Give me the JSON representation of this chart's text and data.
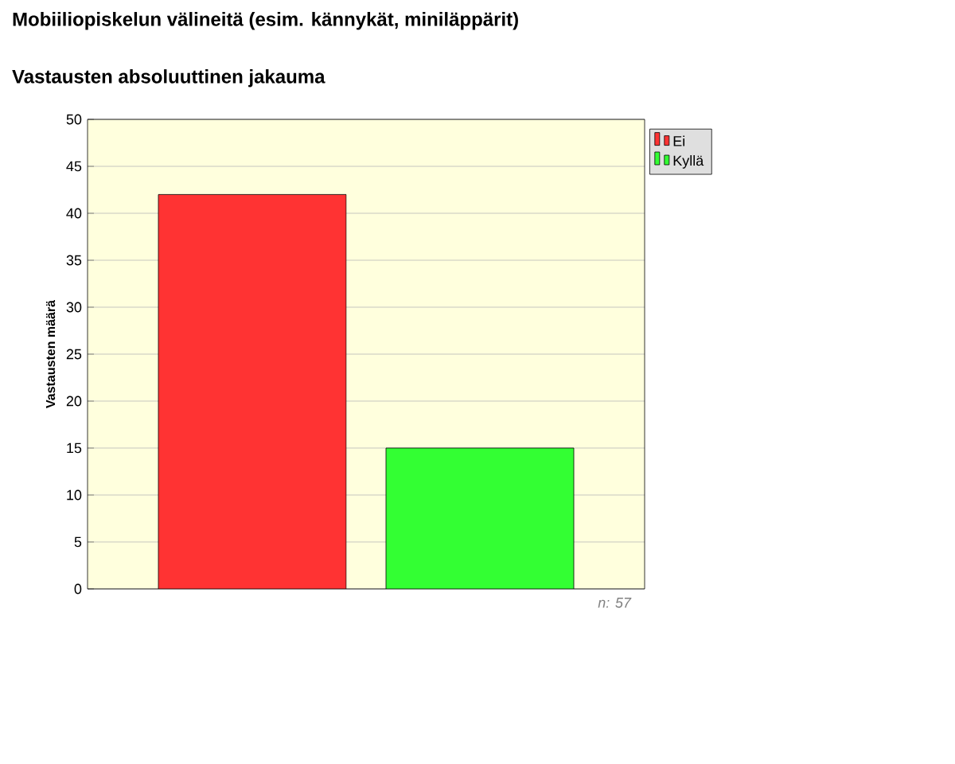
{
  "chart_data": {
    "type": "bar",
    "title": "Mobiiliopiskelun välineitä   (esim. kännykät, miniläppärit)",
    "subtitle": "Vastausten absoluuttinen jakauma",
    "ylabel": "Vastausten määrä",
    "categories": [
      null
    ],
    "series": [
      {
        "name": "Ei",
        "color": "#ff3333",
        "values": [
          42
        ]
      },
      {
        "name": "Kyllä",
        "color": "#33ff33",
        "values": [
          15
        ]
      }
    ],
    "ylim": [
      0,
      50
    ],
    "yticks": [
      0,
      5,
      10,
      15,
      20,
      25,
      30,
      35,
      40,
      45,
      50
    ],
    "grid": "y",
    "legend": "top right",
    "annotations": [
      "n: 57"
    ]
  }
}
